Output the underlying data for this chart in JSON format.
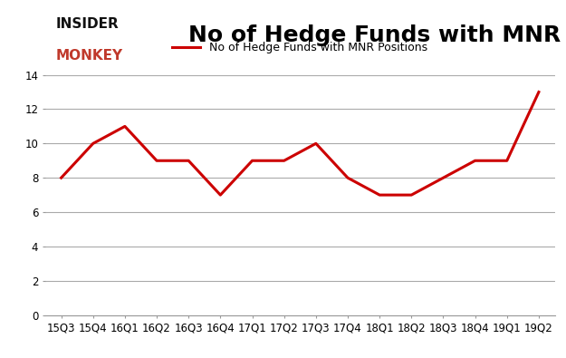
{
  "title": "No of Hedge Funds with MNR Positions",
  "legend_label": "No of Hedge Funds with MNR Positions",
  "x_labels": [
    "15Q3",
    "15Q4",
    "16Q1",
    "16Q2",
    "16Q3",
    "16Q4",
    "17Q1",
    "17Q2",
    "17Q3",
    "17Q4",
    "18Q1",
    "18Q2",
    "18Q3",
    "18Q4",
    "19Q1",
    "19Q2"
  ],
  "y_values": [
    8,
    10,
    11,
    9,
    9,
    7,
    9,
    9,
    10,
    8,
    7,
    7,
    8,
    9,
    9,
    13
  ],
  "line_color": "#cc0000",
  "line_width": 2.2,
  "ylim": [
    0,
    14
  ],
  "yticks": [
    0,
    2,
    4,
    6,
    8,
    10,
    12,
    14
  ],
  "background_color": "#ffffff",
  "grid_color": "#aaaaaa",
  "title_fontsize": 18,
  "legend_fontsize": 9,
  "tick_fontsize": 8.5,
  "logo_insider_color": "#111111",
  "logo_monkey_color": "#c0392b",
  "logo_fontsize": 11
}
